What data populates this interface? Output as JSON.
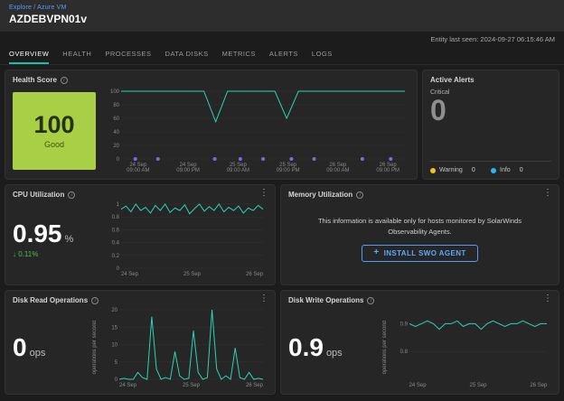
{
  "header": {
    "breadcrumb": "Explore / Azure VM",
    "title": "AZDEBVPN01v",
    "last_seen": "Entity last seen: 2024-09-27 06:15:46 AM"
  },
  "tabs": [
    {
      "label": "OVERVIEW",
      "active": true
    },
    {
      "label": "HEALTH"
    },
    {
      "label": "PROCESSES"
    },
    {
      "label": "DATA DISKS"
    },
    {
      "label": "METRICS"
    },
    {
      "label": "ALERTS"
    },
    {
      "label": "LOGS"
    }
  ],
  "cards": {
    "health": {
      "title": "Health Score",
      "score": "100",
      "status": "Good"
    },
    "alerts": {
      "title": "Active Alerts",
      "critical_label": "Critical",
      "critical_value": "0",
      "warning_label": "Warning",
      "warning_value": "0",
      "info_label": "Info",
      "info_value": "0"
    },
    "cpu": {
      "title": "CPU Utilization",
      "value": "0.95",
      "unit": "%",
      "delta_dir": "↓",
      "delta": "0.11%"
    },
    "memory": {
      "title": "Memory Utilization",
      "message": "This information is available only for hosts monitored by SolarWinds Observability Agents.",
      "button_icon": "+",
      "button_label": "INSTALL SWO AGENT"
    },
    "disk_read": {
      "title": "Disk Read Operations",
      "value": "0",
      "unit": "ops",
      "ylabel": "operations per second"
    },
    "disk_write": {
      "title": "Disk Write Operations",
      "value": "0.9",
      "unit": "ops",
      "ylabel": "operations per second"
    }
  },
  "colors": {
    "accent_teal": "#2bd4b4",
    "marker_purple": "#7e6fd8",
    "score_green": "#a8cf45",
    "link_blue": "#579bfa",
    "button_blue": "#4a9eff",
    "warning_yellow": "#f0c419",
    "info_cyan": "#29b6f6",
    "delta_green": "#53b854"
  },
  "chart_data": [
    {
      "id": "health-score-timeline",
      "type": "line",
      "color": "#2bd4b4",
      "ylim": [
        0,
        100
      ],
      "yticks": [
        0,
        20,
        40,
        60,
        80,
        100
      ],
      "xticks": [
        "24 Sep\n09:00 AM",
        "24 Sep\n09:00 PM",
        "25 Sep\n09:00 AM",
        "25 Sep\n09:00 PM",
        "26 Sep\n09:00 AM",
        "26 Sep\n09:00 PM"
      ],
      "xtick_lines": 2,
      "values": [
        100,
        100,
        100,
        100,
        100,
        100,
        100,
        100,
        55,
        100,
        100,
        100,
        100,
        100,
        60,
        100,
        100,
        100,
        100,
        100,
        100,
        100,
        100,
        100,
        100
      ],
      "markers": [
        0.05,
        0.13,
        0.33,
        0.42,
        0.5,
        0.6,
        0.68,
        0.85,
        0.95
      ],
      "marker_y": 0,
      "marker_color": "#7e6fd8"
    },
    {
      "id": "cpu-utilization",
      "type": "line",
      "color": "#2bd4b4",
      "ylim": [
        0,
        1
      ],
      "yticks": [
        0,
        0.2,
        0.4,
        0.6,
        0.8,
        1
      ],
      "xticks": [
        "24 Sep",
        "25 Sep",
        "26 Sep"
      ],
      "values": [
        0.92,
        0.97,
        0.88,
        1,
        0.9,
        0.95,
        0.86,
        0.98,
        0.9,
        1,
        0.87,
        0.94,
        0.9,
        0.99,
        0.85,
        0.93,
        1,
        0.89,
        0.96,
        0.9,
        1,
        0.88,
        0.95,
        0.9,
        0.97,
        0.86,
        0.94,
        0.9,
        0.98,
        0.92
      ]
    },
    {
      "id": "disk-read-operations",
      "type": "line",
      "color": "#2bd4b4",
      "ylim": [
        0,
        20
      ],
      "yticks": [
        0,
        5,
        10,
        15,
        20
      ],
      "xticks": [
        "24 Sep",
        "25 Sep",
        "26 Sep"
      ],
      "values": [
        0,
        0.3,
        0,
        0,
        2,
        0.5,
        0,
        18,
        3,
        0,
        0.5,
        0,
        8,
        1,
        0,
        0.3,
        14,
        2,
        0,
        0.5,
        20,
        3,
        0,
        1,
        0,
        9,
        0.5,
        0,
        2,
        0,
        0.3,
        0
      ]
    },
    {
      "id": "disk-write-operations",
      "type": "line",
      "color": "#2bd4b4",
      "ylim": [
        0.7,
        0.95
      ],
      "yticks": [
        0.8,
        0.9
      ],
      "xticks": [
        "24 Sep",
        "25 Sep",
        "26 Sep"
      ],
      "values": [
        0.9,
        0.89,
        0.9,
        0.91,
        0.9,
        0.88,
        0.9,
        0.9,
        0.91,
        0.89,
        0.9,
        0.9,
        0.88,
        0.9,
        0.91,
        0.9,
        0.89,
        0.9,
        0.9,
        0.91,
        0.9,
        0.89,
        0.9,
        0.9
      ]
    }
  ]
}
